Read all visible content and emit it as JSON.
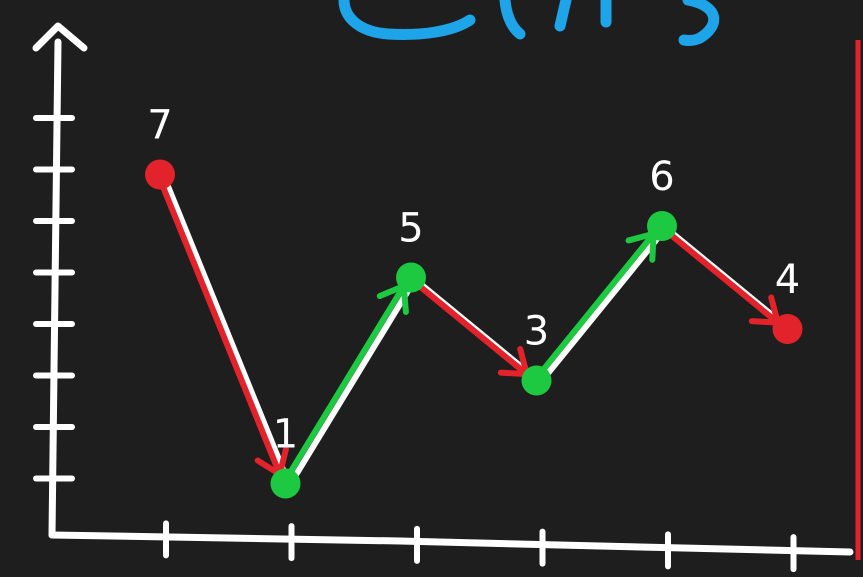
{
  "colors": {
    "background": "#1e1e1e",
    "axis": "#ffffff",
    "decrease": "#e3232b",
    "increase": "#1dc940",
    "blue_scribble": "#1ea4e8",
    "label": "#ffffff"
  },
  "chart_data": {
    "type": "line",
    "title": "",
    "xlabel": "",
    "ylabel": "",
    "x": [
      1,
      2,
      3,
      4,
      5,
      6
    ],
    "values": [
      7,
      1,
      5,
      3,
      6,
      4
    ],
    "labels": [
      "7",
      "1",
      "5",
      "3",
      "6",
      "4"
    ],
    "ylim": [
      0,
      8
    ],
    "y_ticks": [
      1,
      2,
      3,
      4,
      5,
      6,
      7,
      8
    ],
    "x_ticks": [
      1,
      2,
      3,
      4,
      5,
      6
    ],
    "grid": false,
    "legend": "none",
    "point_colors": [
      "red",
      "green",
      "green",
      "green",
      "green",
      "red"
    ],
    "segment_colors": [
      "red",
      "green",
      "red",
      "green",
      "red"
    ]
  }
}
